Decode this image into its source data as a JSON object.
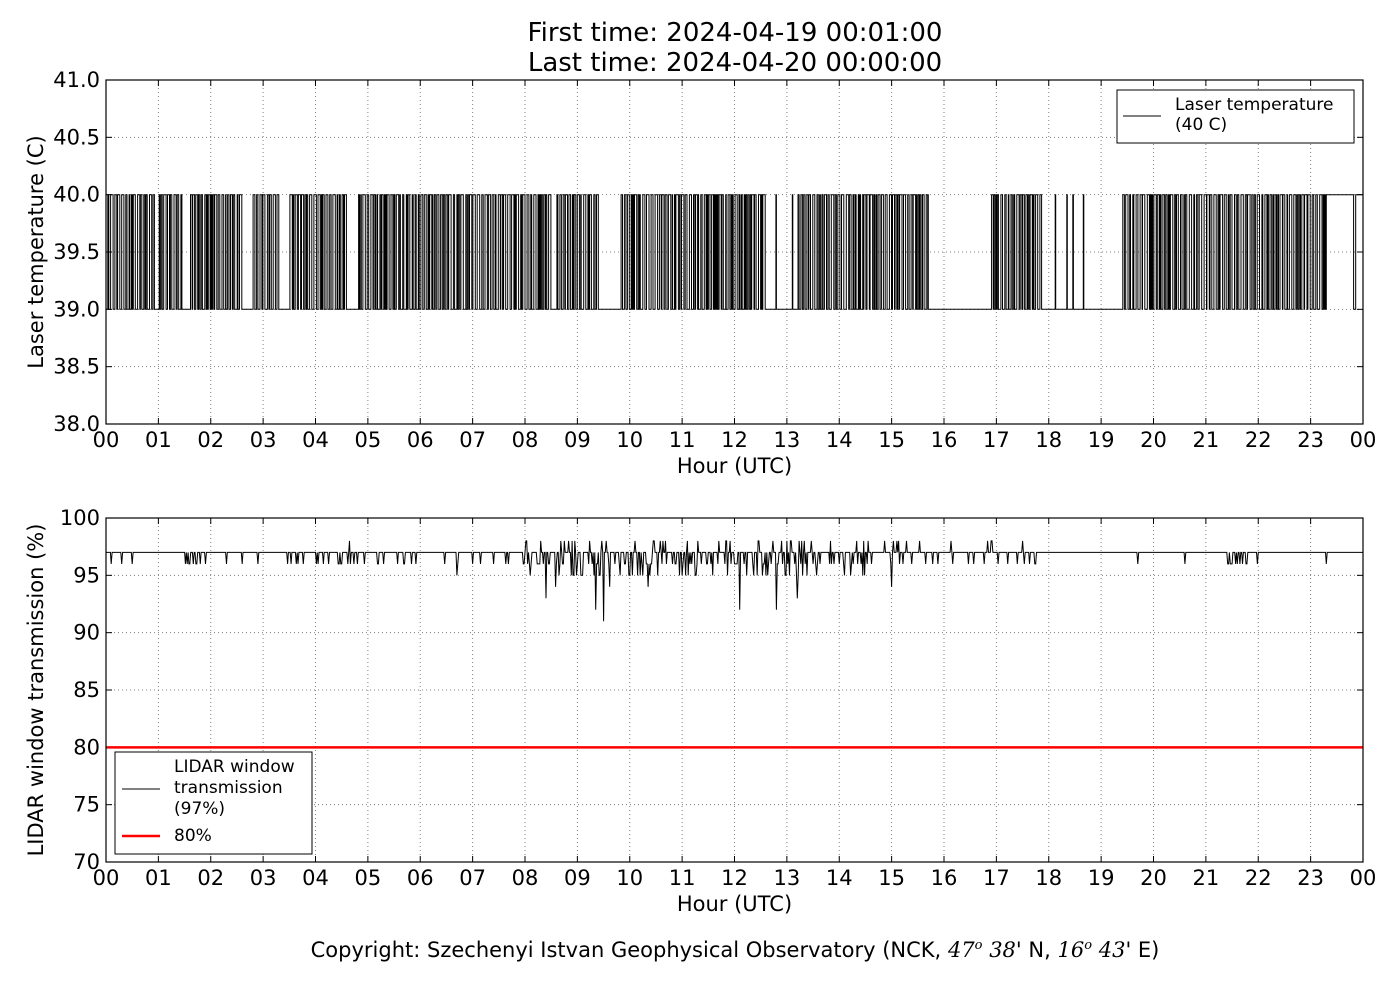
{
  "header": {
    "first_time": "First time: 2024-04-19 00:01:00",
    "last_time": "Last time: 2024-04-20 00:00:00"
  },
  "footer": {
    "copyright_prefix": "Copyright: Szechenyi Istvan Geophysical Observatory (NCK,",
    "lat_deg": "47",
    "lat_deg_sup": "o",
    "lat_min": "38",
    "lat_hemi": "' N,",
    "lon_deg": "16",
    "lon_deg_sup": "o",
    "lon_min": "43",
    "lon_hemi": "' E)"
  },
  "colors": {
    "series": "#000000",
    "threshold": "#ff0000",
    "grid": "#808080",
    "background": "#ffffff"
  },
  "chart_data": [
    {
      "type": "line",
      "id": "laser",
      "xlabel": "Hour (UTC)",
      "ylabel": "Laser temperature (C)",
      "xlim": [
        0,
        24
      ],
      "ylim": [
        38.0,
        41.0
      ],
      "x_ticks": [
        "00",
        "01",
        "02",
        "03",
        "04",
        "05",
        "06",
        "07",
        "08",
        "09",
        "10",
        "11",
        "12",
        "13",
        "14",
        "15",
        "16",
        "17",
        "18",
        "19",
        "20",
        "21",
        "22",
        "23",
        "00"
      ],
      "y_ticks": [
        "38.0",
        "38.5",
        "39.0",
        "39.5",
        "40.0",
        "40.5",
        "41.0"
      ],
      "grid": true,
      "legend_position": "upper right",
      "legend": [
        "Laser temperature",
        "(40 C)"
      ],
      "series": [
        {
          "name": "Laser temperature (40 C)",
          "values_allowed": [
            39.0,
            40.0
          ],
          "segments": [
            {
              "x": [
                0.0,
                0.95
              ],
              "pattern": "rapid toggling 39-40"
            },
            {
              "x": [
                1.0,
                1.45
              ],
              "pattern": "rapid toggling 39-40"
            },
            {
              "x": [
                1.6,
                2.6
              ],
              "pattern": "rapid toggling 39-40"
            },
            {
              "x": [
                2.8,
                3.3
              ],
              "pattern": "rapid toggling 39-40"
            },
            {
              "x": [
                3.5,
                4.6
              ],
              "pattern": "rapid toggling 39-40"
            },
            {
              "x": [
                4.8,
                6.6
              ],
              "pattern": "rapid toggling 39-40"
            },
            {
              "x": [
                6.6,
                8.5
              ],
              "pattern": "rapid toggling 39-40"
            },
            {
              "x": [
                8.6,
                9.4
              ],
              "pattern": "rapid toggling 39-40"
            },
            {
              "x": [
                9.4,
                9.8
              ],
              "pattern": "steady 39"
            },
            {
              "x": [
                9.8,
                12.6
              ],
              "pattern": "rapid toggling 39-40"
            },
            {
              "x": [
                12.6,
                13.2
              ],
              "pattern": "mostly 39"
            },
            {
              "x": [
                13.2,
                15.7
              ],
              "pattern": "rapid toggling 39-40"
            },
            {
              "x": [
                16.0,
                16.9
              ],
              "pattern": "steady 39"
            },
            {
              "x": [
                16.9,
                17.9
              ],
              "pattern": "rapid toggling 39-40"
            },
            {
              "x": [
                18.0,
                18.7
              ],
              "pattern": "sparse toggling"
            },
            {
              "x": [
                18.7,
                19.4
              ],
              "pattern": "steady 39"
            },
            {
              "x": [
                19.4,
                23.3
              ],
              "pattern": "rapid toggling 39-40"
            },
            {
              "x": [
                23.3,
                24.0
              ],
              "pattern": "steady 40 with dip to 39 at 23.8"
            }
          ]
        }
      ]
    },
    {
      "type": "line",
      "id": "lidar",
      "xlabel": "Hour (UTC)",
      "ylabel": "LIDAR window transmission (%)",
      "xlim": [
        0,
        24
      ],
      "ylim": [
        70,
        100
      ],
      "x_ticks": [
        "00",
        "01",
        "02",
        "03",
        "04",
        "05",
        "06",
        "07",
        "08",
        "09",
        "10",
        "11",
        "12",
        "13",
        "14",
        "15",
        "16",
        "17",
        "18",
        "19",
        "20",
        "21",
        "22",
        "23",
        "00"
      ],
      "y_ticks": [
        "70",
        "75",
        "80",
        "85",
        "90",
        "95",
        "100"
      ],
      "grid": true,
      "legend_position": "lower left",
      "legend": [
        "LIDAR window",
        "transmission",
        "(97%)",
        "80%"
      ],
      "series": [
        {
          "name": "LIDAR window transmission (97%)",
          "baseline": 97,
          "dips": [
            {
              "x": 0.1,
              "y": 96
            },
            {
              "x": 0.3,
              "y": 96
            },
            {
              "x": 0.5,
              "y": 96
            },
            {
              "x": 1.6,
              "y": 96
            },
            {
              "x": 1.8,
              "y": 96
            },
            {
              "x": 1.9,
              "y": 96
            },
            {
              "x": 2.3,
              "y": 96
            },
            {
              "x": 2.6,
              "y": 96
            },
            {
              "x": 2.9,
              "y": 96
            },
            {
              "x": 4.65,
              "y": 98
            },
            {
              "x": 6.7,
              "y": 95
            },
            {
              "x": 8.4,
              "y": 93
            },
            {
              "x": 9.35,
              "y": 92
            },
            {
              "x": 9.5,
              "y": 91
            },
            {
              "x": 12.1,
              "y": 92
            },
            {
              "x": 12.8,
              "y": 92
            },
            {
              "x": 13.2,
              "y": 93
            },
            {
              "x": 15.0,
              "y": 94
            },
            {
              "x": 17.5,
              "y": 98
            },
            {
              "x": 19.7,
              "y": 96
            },
            {
              "x": 20.6,
              "y": 96
            },
            {
              "x": 23.3,
              "y": 96
            }
          ],
          "noisy_range": {
            "x": [
              3.4,
              17.9
            ],
            "min": 91,
            "max": 98
          }
        },
        {
          "name": "80%",
          "x": [
            0,
            24
          ],
          "y": [
            80,
            80
          ]
        }
      ]
    }
  ]
}
